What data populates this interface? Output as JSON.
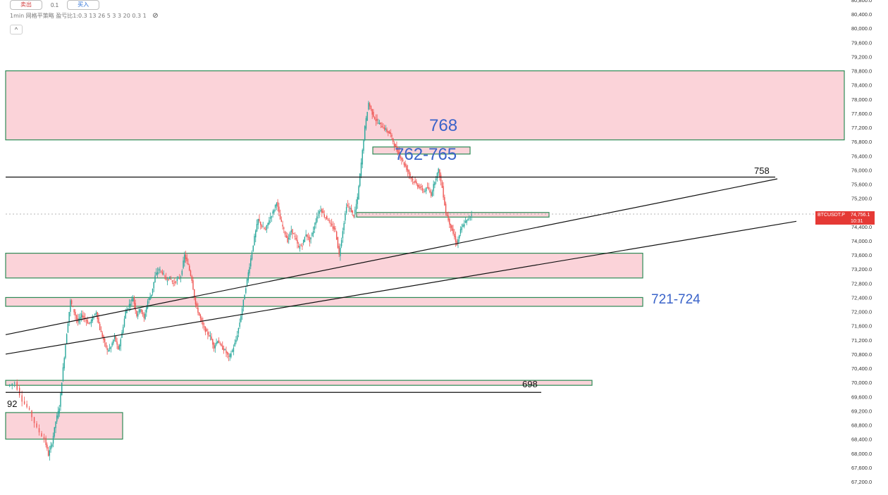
{
  "toolbar": {
    "sell_label": "卖出",
    "qty_value": "0.1",
    "buy_label": "买入",
    "strategy_label": "1min 网格平策略 盈亏比1:0.3 13 26 5 3 3 20 0.3 1",
    "collapse_glyph": "^"
  },
  "price_axis": {
    "labels": [
      "80,800.0",
      "80,400.0",
      "80,000.0",
      "79,600.0",
      "79,200.0",
      "78,800.0",
      "78,400.0",
      "78,000.0",
      "77,600.0",
      "77,200.0",
      "76,800.0",
      "76,400.0",
      "76,000.0",
      "75,600.0",
      "75,200.0",
      "74,800.0",
      "74,400.0",
      "74,000.0",
      "73,600.0",
      "73,200.0",
      "72,800.0",
      "72,400.0",
      "72,000.0",
      "71,600.0",
      "71,200.0",
      "70,800.0",
      "70,400.0",
      "70,000.0",
      "69,600.0",
      "69,200.0",
      "68,800.0",
      "68,400.0",
      "68,000.0",
      "67,600.0",
      "67,200.0"
    ],
    "current_symbol": "BTCUSDT.P",
    "current_price": "74,756.1",
    "countdown": "10:31"
  },
  "annotations": {
    "level_768": "768",
    "level_762_765": "762-765",
    "level_758": "758",
    "level_721_724": "721-724",
    "level_698": "698",
    "level_692_partial": "92"
  },
  "colors": {
    "zone_fill": "#fbd3d9",
    "zone_border": "#2e8b57",
    "candle_up": "#26a69a",
    "candle_down": "#ef5350",
    "annotation_blue": "#3a63c9",
    "badge_red": "#e53935"
  },
  "chart_data": {
    "type": "candlestick",
    "symbol": "BTCUSDT.P",
    "timeframe": "1min",
    "ylim": [
      67000,
      80900
    ],
    "current_price": 74756.1,
    "zones": [
      {
        "low": 76850,
        "high": 78800,
        "label": "768"
      },
      {
        "low": 76450,
        "high": 76650,
        "label": "762-765"
      },
      {
        "low": 74670,
        "high": 74800
      },
      {
        "low": 72950,
        "high": 73650
      },
      {
        "low": 72150,
        "high": 72400,
        "label": "721-724"
      },
      {
        "low": 69920,
        "high": 70060,
        "label": "698"
      },
      {
        "low": 68400,
        "high": 69150
      }
    ],
    "horizontal_lines": [
      {
        "price": 75800,
        "label": "758"
      },
      {
        "price": 69720
      }
    ],
    "trendlines": [
      {
        "from": [
          0,
          71350
        ],
        "to": [
          1,
          75750
        ]
      },
      {
        "from": [
          0,
          70800
        ],
        "to": [
          1,
          74550
        ]
      }
    ],
    "path": [
      [
        0,
        69900
      ],
      [
        4,
        70000
      ],
      [
        8,
        69500
      ],
      [
        12,
        69200
      ],
      [
        16,
        68700
      ],
      [
        20,
        68400
      ],
      [
        22,
        67950
      ],
      [
        24,
        68300
      ],
      [
        26,
        68900
      ],
      [
        28,
        69300
      ],
      [
        30,
        70400
      ],
      [
        32,
        71400
      ],
      [
        34,
        72300
      ],
      [
        36,
        72000
      ],
      [
        38,
        71700
      ],
      [
        40,
        71900
      ],
      [
        42,
        71800
      ],
      [
        44,
        71650
      ],
      [
        46,
        71800
      ],
      [
        48,
        72000
      ],
      [
        50,
        71500
      ],
      [
        52,
        71200
      ],
      [
        54,
        70900
      ],
      [
        56,
        71000
      ],
      [
        58,
        71300
      ],
      [
        60,
        70900
      ],
      [
        62,
        71400
      ],
      [
        64,
        72000
      ],
      [
        66,
        72200
      ],
      [
        68,
        72400
      ],
      [
        70,
        71900
      ],
      [
        72,
        72100
      ],
      [
        74,
        71800
      ],
      [
        76,
        72300
      ],
      [
        78,
        72500
      ],
      [
        80,
        73000
      ],
      [
        82,
        73200
      ],
      [
        84,
        73100
      ],
      [
        86,
        72900
      ],
      [
        88,
        72950
      ],
      [
        90,
        72800
      ],
      [
        92,
        72900
      ],
      [
        94,
        73000
      ],
      [
        96,
        73600
      ],
      [
        98,
        73300
      ],
      [
        100,
        72900
      ],
      [
        102,
        72200
      ],
      [
        104,
        71900
      ],
      [
        106,
        71600
      ],
      [
        108,
        71400
      ],
      [
        110,
        71300
      ],
      [
        112,
        71000
      ],
      [
        114,
        71200
      ],
      [
        116,
        71000
      ],
      [
        118,
        70900
      ],
      [
        120,
        70700
      ],
      [
        122,
        70900
      ],
      [
        124,
        71200
      ],
      [
        126,
        71700
      ],
      [
        128,
        72300
      ],
      [
        130,
        72900
      ],
      [
        132,
        73500
      ],
      [
        134,
        74100
      ],
      [
        136,
        74600
      ],
      [
        138,
        74400
      ],
      [
        140,
        74300
      ],
      [
        142,
        74600
      ],
      [
        144,
        74800
      ],
      [
        146,
        75100
      ],
      [
        148,
        74600
      ],
      [
        150,
        74300
      ],
      [
        152,
        74000
      ],
      [
        154,
        74300
      ],
      [
        156,
        74100
      ],
      [
        158,
        73800
      ],
      [
        160,
        73900
      ],
      [
        162,
        74200
      ],
      [
        164,
        74000
      ],
      [
        166,
        74300
      ],
      [
        168,
        74700
      ],
      [
        170,
        74900
      ],
      [
        172,
        74700
      ],
      [
        174,
        74600
      ],
      [
        176,
        74400
      ],
      [
        178,
        74300
      ],
      [
        180,
        73600
      ],
      [
        182,
        74300
      ],
      [
        184,
        75000
      ],
      [
        186,
        74900
      ],
      [
        188,
        74700
      ],
      [
        190,
        75200
      ],
      [
        192,
        76200
      ],
      [
        194,
        77200
      ],
      [
        196,
        77900
      ],
      [
        198,
        77600
      ],
      [
        200,
        77400
      ],
      [
        202,
        77300
      ],
      [
        204,
        77200
      ],
      [
        206,
        77100
      ],
      [
        208,
        77000
      ],
      [
        210,
        76700
      ],
      [
        212,
        76500
      ],
      [
        214,
        76300
      ],
      [
        216,
        76100
      ],
      [
        218,
        75900
      ],
      [
        220,
        75700
      ],
      [
        222,
        75600
      ],
      [
        224,
        75500
      ],
      [
        226,
        75400
      ],
      [
        228,
        75500
      ],
      [
        230,
        75300
      ],
      [
        232,
        75700
      ],
      [
        234,
        76000
      ],
      [
        236,
        75500
      ],
      [
        238,
        74800
      ],
      [
        240,
        74500
      ],
      [
        242,
        74200
      ],
      [
        244,
        73900
      ],
      [
        246,
        74300
      ],
      [
        248,
        74500
      ],
      [
        250,
        74600
      ],
      [
        252,
        74756
      ]
    ]
  }
}
